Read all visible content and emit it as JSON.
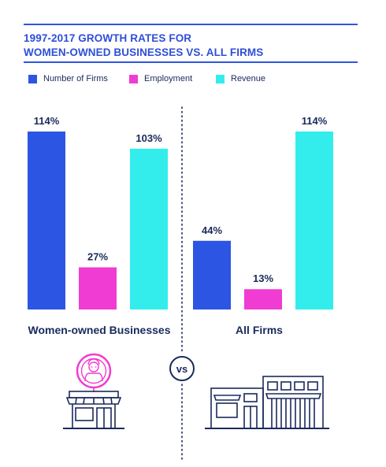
{
  "title": {
    "line1": "1997-2017 GROWTH RATES FOR",
    "line2": "WOMEN-OWNED BUSINESSES VS. ALL FIRMS"
  },
  "vs_label": "vs",
  "icons": [
    "woman-icon",
    "storefront-icon",
    "buildings-icon"
  ],
  "chart_data": {
    "type": "bar",
    "title": "1997-2017 GROWTH RATES FOR WOMEN-OWNED BUSINESSES VS. ALL FIRMS",
    "categories": [
      "Women-owned Businesses",
      "All Firms"
    ],
    "series": [
      {
        "name": "Number of Firms",
        "values": [
          114,
          44
        ],
        "labels": [
          "114%",
          "44%"
        ],
        "color": "#2d55e3"
      },
      {
        "name": "Employment",
        "values": [
          27,
          13
        ],
        "labels": [
          "27%",
          "13%"
        ],
        "color": "#f03cd2"
      },
      {
        "name": "Revenue",
        "values": [
          103,
          114
        ],
        "labels": [
          "103%",
          "114%"
        ],
        "color": "#33eded"
      }
    ],
    "unit": "%",
    "ylim": [
      0,
      114
    ],
    "grid": false,
    "legend": "top-left"
  }
}
